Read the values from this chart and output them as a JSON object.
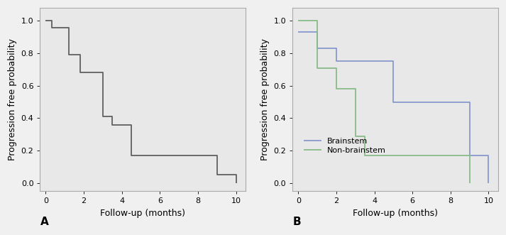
{
  "panel_A_steps": {
    "times": [
      0.0,
      0.3,
      0.3,
      1.2,
      1.2,
      1.8,
      1.8,
      3.0,
      3.0,
      3.5,
      3.5,
      4.5,
      4.5,
      5.0,
      5.0,
      9.0,
      9.0,
      9.5,
      9.5,
      10.0
    ],
    "probs": [
      1.0,
      1.0,
      0.96,
      0.96,
      0.79,
      0.79,
      0.68,
      0.68,
      0.41,
      0.41,
      0.36,
      0.36,
      0.17,
      0.17,
      0.17,
      0.17,
      0.05,
      0.05,
      0.05,
      0.0
    ],
    "color": "#606060",
    "linewidth": 1.3
  },
  "panel_B_brainstem": {
    "times": [
      0.0,
      0.3,
      0.3,
      1.0,
      1.0,
      2.0,
      2.0,
      5.0,
      5.0,
      9.0,
      9.0,
      10.0
    ],
    "probs": [
      0.93,
      0.93,
      0.93,
      0.83,
      0.83,
      0.75,
      0.75,
      0.5,
      0.5,
      0.17,
      0.17,
      0.0
    ],
    "color": "#8899cc",
    "linewidth": 1.3
  },
  "panel_B_nonbrainstem": {
    "times": [
      0.0,
      0.5,
      0.5,
      1.0,
      1.0,
      2.0,
      2.0,
      3.0,
      3.0,
      3.5,
      3.5,
      9.0,
      9.0
    ],
    "probs": [
      1.0,
      1.0,
      1.0,
      0.71,
      0.71,
      0.58,
      0.58,
      0.29,
      0.29,
      0.17,
      0.17,
      0.17,
      0.0
    ],
    "color": "#88bb88",
    "linewidth": 1.3
  },
  "xlim": [
    -0.3,
    10.5
  ],
  "ylim": [
    -0.05,
    1.08
  ],
  "xticks": [
    0,
    2,
    4,
    6,
    8,
    10
  ],
  "yticks": [
    0.0,
    0.2,
    0.4,
    0.6,
    0.8,
    1.0
  ],
  "xlabel": "Follow-up (months)",
  "ylabel": "Progression free probability",
  "plot_bg_color": "#e8e8e8",
  "fig_bg_color": "#f0f0f0",
  "border_color": "#aaaaaa",
  "label_A": "A",
  "label_B": "B",
  "legend_brainstem": "Brainstem",
  "legend_nonbrainstem": "Non-brainstem",
  "tick_fontsize": 8,
  "label_fontsize": 9,
  "ab_fontsize": 11
}
